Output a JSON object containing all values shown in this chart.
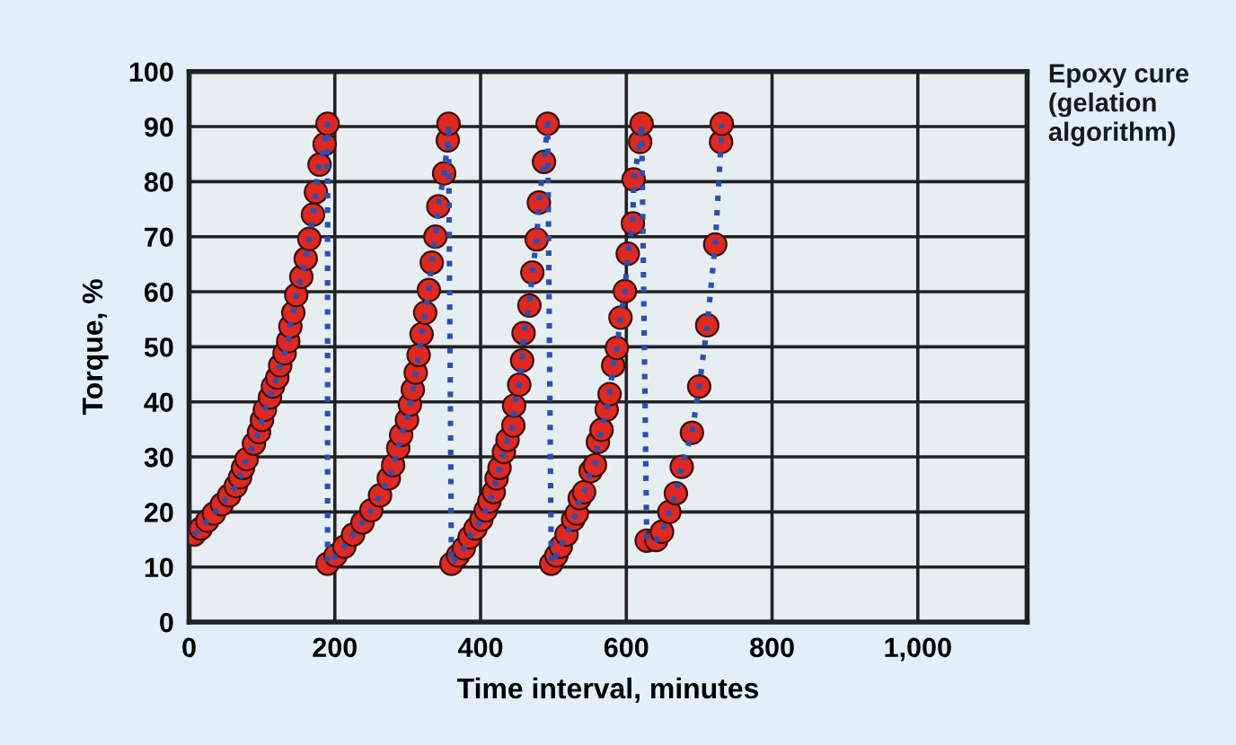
{
  "chart_data": {
    "type": "line",
    "xlabel": "Time interval, minutes",
    "ylabel": "Torque, %",
    "annotations": [
      "Epoxy cure\n(gelation\nalgorithm)"
    ],
    "xlim": [
      0,
      1150
    ],
    "ylim": [
      0,
      100
    ],
    "xticks": [
      0,
      200,
      400,
      600,
      800,
      {
        "value": 1000,
        "label": "1,000"
      }
    ],
    "yticks": [
      0,
      10,
      20,
      30,
      40,
      50,
      60,
      70,
      80,
      90,
      100
    ],
    "grid": true,
    "marker": "circle",
    "line_style": "dotted",
    "series": [
      {
        "color": "#e0281e",
        "x": [
          7,
          16,
          25,
          34,
          45,
          55,
          64,
          70,
          74,
          79,
          89,
          96,
          100,
          104,
          111,
          115,
          121,
          125,
          131,
          136,
          139,
          143,
          147,
          154,
          160,
          165,
          170,
          174,
          179,
          186,
          190,
          190,
          201,
          213,
          225,
          238,
          250,
          262,
          274,
          280,
          287,
          291,
          299,
          303,
          307,
          311,
          315,
          319,
          324,
          329,
          333,
          338,
          342,
          350,
          355,
          356,
          360,
          369,
          377,
          385,
          393,
          401,
          407,
          412,
          418,
          422,
          426,
          432,
          437,
          445,
          446,
          453,
          457,
          459,
          467,
          471,
          477,
          480,
          487,
          492,
          497,
          504,
          510,
          518,
          527,
          532,
          536,
          542,
          551,
          557,
          561,
          566,
          573,
          577,
          582,
          587,
          592,
          598,
          602,
          609,
          610,
          619,
          621,
          628,
          641,
          649,
          659,
          668,
          676,
          690,
          700,
          711,
          722,
          730,
          731
        ],
        "values": [
          15.9,
          17.0,
          18.4,
          19.7,
          21.4,
          23.0,
          24.7,
          26.3,
          28.0,
          29.6,
          32.4,
          34.5,
          36.7,
          38.6,
          40.8,
          42.8,
          44.4,
          46.6,
          48.8,
          51.0,
          53.7,
          56.2,
          59.4,
          62.7,
          66.0,
          69.6,
          74.0,
          78.1,
          83.1,
          86.8,
          90.5,
          10.6,
          12.1,
          13.7,
          15.9,
          18.1,
          20.3,
          23.0,
          26.1,
          28.5,
          31.6,
          34.0,
          36.7,
          39.5,
          42.2,
          45.3,
          48.5,
          52.3,
          56.2,
          60.3,
          65.3,
          70.0,
          75.5,
          81.5,
          87.5,
          90.5,
          10.6,
          12.1,
          13.4,
          15.4,
          17.0,
          18.6,
          20.3,
          21.9,
          23.6,
          26.1,
          28.0,
          30.9,
          33.1,
          35.7,
          39.3,
          43.1,
          47.5,
          52.5,
          57.5,
          63.5,
          69.5,
          76.2,
          83.6,
          90.5,
          10.6,
          12.1,
          13.7,
          15.9,
          18.6,
          19.7,
          22.5,
          23.6,
          27.4,
          28.5,
          32.7,
          34.9,
          38.6,
          41.4,
          46.6,
          49.8,
          55.3,
          60.1,
          66.9,
          72.4,
          80.4,
          87.2,
          90.5,
          14.8,
          14.9,
          16.4,
          20.0,
          23.4,
          28.2,
          34.4,
          42.8,
          53.9,
          68.6,
          87.2,
          90.5
        ]
      }
    ]
  }
}
